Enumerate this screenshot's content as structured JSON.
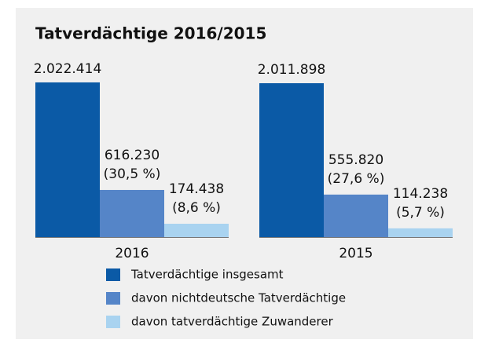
{
  "chart_data": {
    "type": "bar",
    "title": "Tatverdächtige 2016/2015",
    "categories": [
      "2016",
      "2015"
    ],
    "series": [
      {
        "name": "Tatverdächtige insgesamt",
        "color": "#0b5aa6",
        "values": [
          2022414,
          2011898
        ],
        "value_labels": [
          "2.022.414",
          "2.011.898"
        ]
      },
      {
        "name": "davon nichtdeutsche Tatverdächtige",
        "color": "#5585c8",
        "values": [
          616230,
          555820
        ],
        "value_labels": [
          "616.230",
          "555.820"
        ],
        "share_labels": [
          "(30,5 %)",
          "(27,6 %)"
        ]
      },
      {
        "name": "davon tatverdächtige Zuwanderer",
        "color": "#a9d3f0",
        "values": [
          174438,
          114238
        ],
        "value_labels": [
          "174.438",
          "114.238"
        ],
        "share_labels": [
          "(8,6 %)",
          "(5,7 %)"
        ]
      }
    ],
    "ylim": [
      0,
      2100000
    ]
  }
}
